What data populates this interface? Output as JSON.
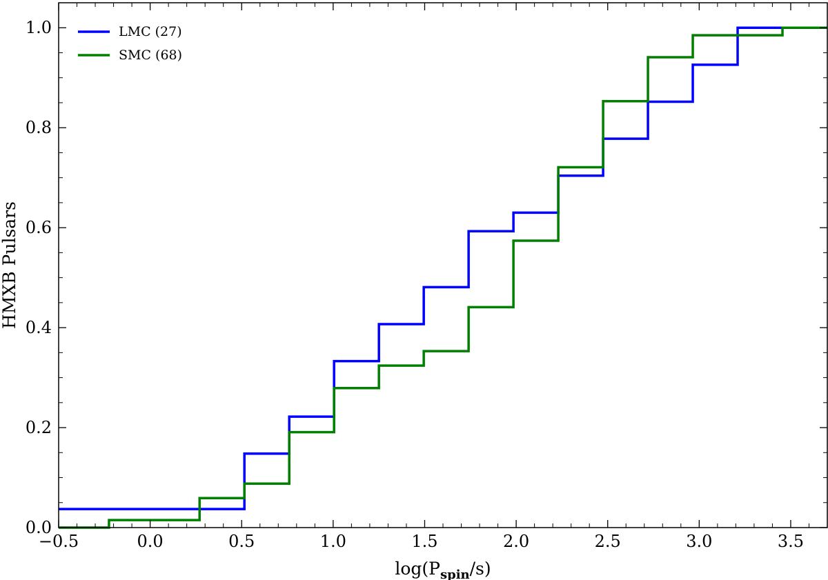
{
  "chart_data": {
    "type": "line",
    "drawstyle": "steps-post",
    "title": "",
    "xlabel": {
      "prefix": "log(P",
      "subscript": "spin",
      "suffix": "/s)"
    },
    "ylabel": "HMXB Pulsars",
    "xlim": [
      -0.5,
      3.7
    ],
    "ylim": [
      0.0,
      1.05
    ],
    "xticks": [
      -0.5,
      0.0,
      0.5,
      1.0,
      1.5,
      2.0,
      2.5,
      3.0,
      3.5
    ],
    "xtick_labels": [
      "−0.5",
      "0.0",
      "0.5",
      "1.0",
      "1.5",
      "2.0",
      "2.5",
      "3.0",
      "3.5"
    ],
    "yticks": [
      0.0,
      0.2,
      0.4,
      0.6,
      0.8,
      1.0
    ],
    "ytick_labels": [
      "0.0",
      "0.2",
      "0.4",
      "0.6",
      "0.8",
      "1.0"
    ],
    "x_minor_step": 0.1,
    "y_minor_step": 0.05,
    "grid": false,
    "legend_position": "top-left",
    "series": [
      {
        "name": "LMC (27)",
        "color": "#0000ff",
        "x": [
          -0.5,
          0.515,
          0.76,
          1.005,
          1.25,
          1.495,
          1.74,
          1.985,
          2.23,
          2.475,
          2.72,
          2.965,
          3.21,
          3.455,
          3.7
        ],
        "y": [
          0.037,
          0.148,
          0.222,
          0.333,
          0.407,
          0.481,
          0.593,
          0.63,
          0.704,
          0.778,
          0.852,
          0.926,
          1.0,
          1.0,
          1.0
        ]
      },
      {
        "name": "SMC (68)",
        "color": "#008000",
        "x": [
          -0.5,
          -0.225,
          0.27,
          0.515,
          0.76,
          1.005,
          1.25,
          1.495,
          1.74,
          1.985,
          2.23,
          2.475,
          2.72,
          2.965,
          3.455,
          3.7
        ],
        "y": [
          0.0,
          0.015,
          0.059,
          0.088,
          0.191,
          0.279,
          0.324,
          0.353,
          0.441,
          0.574,
          0.721,
          0.853,
          0.941,
          0.985,
          1.0,
          1.0
        ]
      }
    ]
  }
}
